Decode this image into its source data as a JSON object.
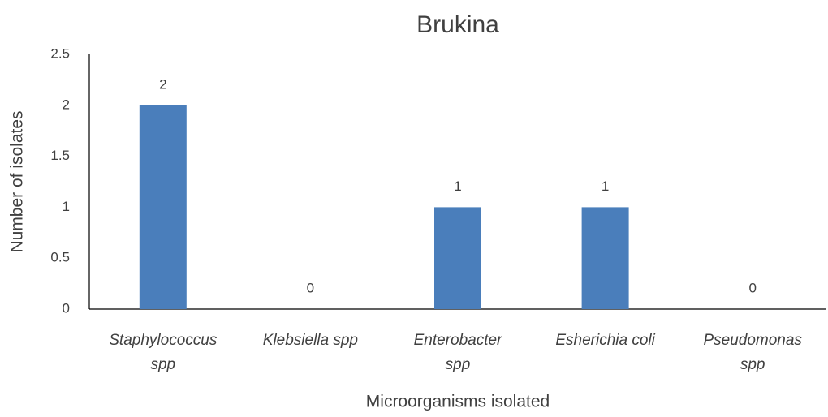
{
  "chart_data": {
    "type": "bar",
    "title": "Brukina",
    "x_label": "Microorganisms isolated",
    "y_label": "Number of isolates",
    "categories": [
      "Staphylococcus spp",
      "Klebsiella spp",
      "Enterobacter spp",
      "Esherichia coli",
      "Pseudomonas spp"
    ],
    "values": [
      2,
      0,
      1,
      1,
      0
    ],
    "color": "#4a7ebb",
    "ylim": [
      0,
      2.5
    ],
    "yticks": [
      0,
      0.5,
      1,
      1.5,
      2,
      2.5
    ],
    "grid": false
  }
}
